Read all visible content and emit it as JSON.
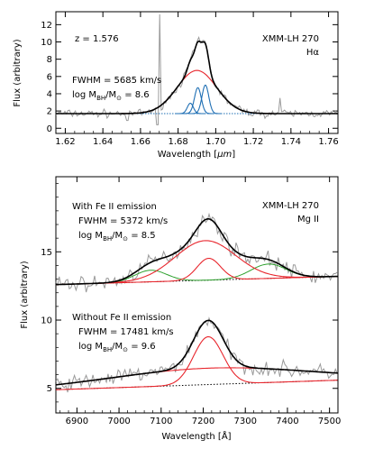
{
  "chart_data": [
    {
      "type": "line",
      "xlabel_main": "Wavelength [",
      "xlabel_unit": "μm",
      "xlabel_close": "]",
      "ylabel": "Flux (arbitrary)",
      "xlim": [
        1.615,
        1.765
      ],
      "ylim": [
        -0.6,
        13.5
      ],
      "xticks": [
        1.62,
        1.64,
        1.66,
        1.68,
        1.7,
        1.72,
        1.74,
        1.76
      ],
      "yticks": [
        0,
        2,
        4,
        6,
        8,
        10,
        12
      ],
      "redshift_label": "z = 1.576",
      "object_label": "XMM-LH 270",
      "line_label": "Hα",
      "fwhm_label": "FWHM = 5685 km/s",
      "mass_prefix": "log M",
      "mass_sub1": "BH",
      "mass_mid": "/M",
      "mass_sub2": "⊙",
      "mass_value": " = 8.6",
      "continuum_level": 1.7,
      "components": [
        {
          "name": "broad",
          "color": "#e8262d",
          "center": 1.69,
          "sigma": 0.0105,
          "amp": 5.0
        },
        {
          "name": "narrow-blue-1",
          "color": "#1f6fb4",
          "center": 1.6865,
          "sigma": 0.0016,
          "amp": 1.2
        },
        {
          "name": "narrow-blue-2",
          "color": "#1f6fb4",
          "center": 1.6905,
          "sigma": 0.0018,
          "amp": 3.0
        },
        {
          "name": "narrow-blue-3",
          "color": "#1f6fb4",
          "center": 1.6945,
          "sigma": 0.0018,
          "amp": 3.3
        }
      ],
      "spikes": [
        [
          1.67,
          13.2
        ],
        [
          1.683,
          6.3
        ],
        [
          1.734,
          3.5
        ],
        [
          1.653,
          0.9
        ],
        [
          1.669,
          0.4
        ]
      ]
    },
    {
      "type": "line",
      "xlabel_main": "Wavelength [",
      "xlabel_unit": "Å",
      "xlabel_close": "]",
      "ylabel": "Flux (arbitrary)",
      "xlim": [
        6850,
        7520
      ],
      "ylim": [
        3.2,
        20.5
      ],
      "xticks": [
        6900,
        7000,
        7100,
        7200,
        7300,
        7400,
        7500
      ],
      "yticks": [
        5,
        10,
        15
      ],
      "object_label": "XMM-LH 270",
      "line_label": "Mg II",
      "upper": {
        "title": "With Fe II emission",
        "fwhm_label": "FWHM = 5372 km/s",
        "mass_value": " = 8.5",
        "continuum_start": 12.6,
        "continuum_end": 13.2,
        "gaussians": [
          {
            "name": "mgii-red-1",
            "color": "#e8262d",
            "center": 7205,
            "sigma": 72,
            "amp": 2.9
          },
          {
            "name": "mgii-red-2",
            "color": "#e8262d",
            "center": 7213,
            "sigma": 28,
            "amp": 1.6
          }
        ],
        "feii": [
          {
            "name": "feii-green-1",
            "color": "#2ca02c",
            "center": 7075,
            "sigma": 38,
            "amp": 0.85
          },
          {
            "name": "feii-green-2",
            "color": "#2ca02c",
            "center": 7355,
            "sigma": 42,
            "amp": 1.05
          }
        ]
      },
      "lower": {
        "title": "Without Fe II emission",
        "fwhm_label": "FWHM = 17481 km/s",
        "mass_value": " = 9.6",
        "continuum_start": 4.9,
        "continuum_end": 5.6,
        "gaussians": [
          {
            "name": "mgii-broad-wide",
            "color": "#e8262d",
            "center": 7215,
            "sigma": 235,
            "amp": 1.2
          },
          {
            "name": "mgii-broad-core",
            "color": "#e8262d",
            "center": 7212,
            "sigma": 35,
            "amp": 3.5
          }
        ]
      },
      "mass_prefix": "log M",
      "mass_sub1": "BH",
      "mass_mid": "/M",
      "mass_sub2": "⊙",
      "colors": {
        "data": "#9a9a9a",
        "fit": "#000000",
        "continuum": "#000000"
      }
    }
  ]
}
